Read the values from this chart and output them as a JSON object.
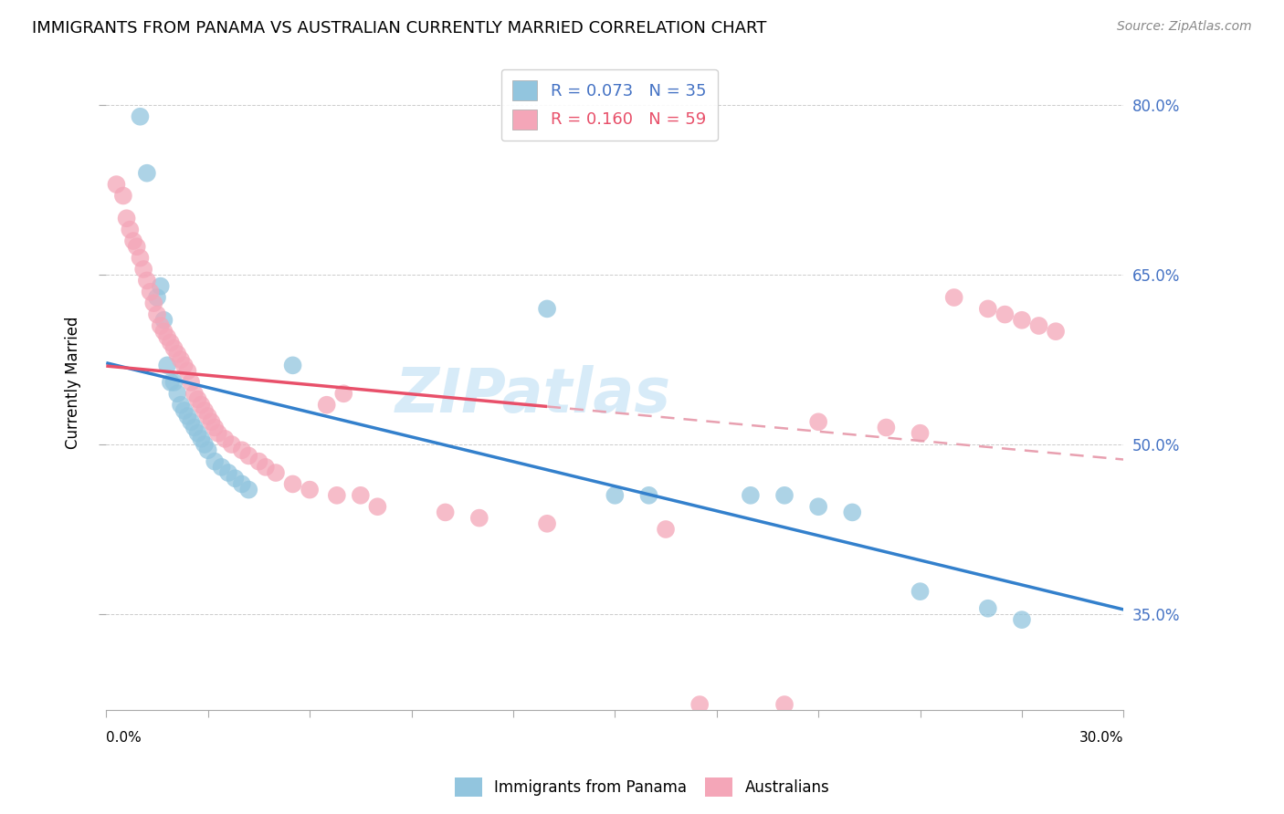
{
  "title": "IMMIGRANTS FROM PANAMA VS AUSTRALIAN CURRENTLY MARRIED CORRELATION CHART",
  "source": "Source: ZipAtlas.com",
  "ylabel": "Currently Married",
  "y_ticks": [
    0.35,
    0.5,
    0.65,
    0.8
  ],
  "y_tick_labels": [
    "35.0%",
    "50.0%",
    "65.0%",
    "80.0%"
  ],
  "x_range": [
    0.0,
    0.3
  ],
  "y_range": [
    0.265,
    0.845
  ],
  "blue_color": "#92c5de",
  "pink_color": "#f4a6b8",
  "blue_line_color": "#3380cc",
  "pink_line_color": "#e8506a",
  "pink_dashed_color": "#e8a0b0",
  "watermark": "ZIPatlas",
  "blue_x": [
    0.01,
    0.012,
    0.015,
    0.016,
    0.017,
    0.018,
    0.019,
    0.02,
    0.021,
    0.022,
    0.023,
    0.024,
    0.025,
    0.026,
    0.027,
    0.028,
    0.029,
    0.03,
    0.032,
    0.034,
    0.036,
    0.038,
    0.04,
    0.042,
    0.055,
    0.13,
    0.15,
    0.16,
    0.19,
    0.2,
    0.21,
    0.22,
    0.24,
    0.26,
    0.27
  ],
  "blue_y": [
    0.79,
    0.74,
    0.63,
    0.64,
    0.61,
    0.57,
    0.555,
    0.555,
    0.545,
    0.535,
    0.53,
    0.525,
    0.52,
    0.515,
    0.51,
    0.505,
    0.5,
    0.495,
    0.485,
    0.48,
    0.475,
    0.47,
    0.465,
    0.46,
    0.57,
    0.62,
    0.455,
    0.455,
    0.455,
    0.455,
    0.445,
    0.44,
    0.37,
    0.355,
    0.345
  ],
  "pink_x": [
    0.003,
    0.005,
    0.006,
    0.007,
    0.008,
    0.009,
    0.01,
    0.011,
    0.012,
    0.013,
    0.014,
    0.015,
    0.016,
    0.017,
    0.018,
    0.019,
    0.02,
    0.021,
    0.022,
    0.023,
    0.024,
    0.025,
    0.026,
    0.027,
    0.028,
    0.029,
    0.03,
    0.031,
    0.032,
    0.033,
    0.035,
    0.037,
    0.04,
    0.042,
    0.045,
    0.047,
    0.05,
    0.055,
    0.06,
    0.065,
    0.068,
    0.07,
    0.075,
    0.08,
    0.1,
    0.11,
    0.13,
    0.165,
    0.175,
    0.2,
    0.21,
    0.23,
    0.24,
    0.25,
    0.26,
    0.265,
    0.27,
    0.275,
    0.28
  ],
  "pink_y": [
    0.73,
    0.72,
    0.7,
    0.69,
    0.68,
    0.675,
    0.665,
    0.655,
    0.645,
    0.635,
    0.625,
    0.615,
    0.605,
    0.6,
    0.595,
    0.59,
    0.585,
    0.58,
    0.575,
    0.57,
    0.565,
    0.555,
    0.545,
    0.54,
    0.535,
    0.53,
    0.525,
    0.52,
    0.515,
    0.51,
    0.505,
    0.5,
    0.495,
    0.49,
    0.485,
    0.48,
    0.475,
    0.465,
    0.46,
    0.535,
    0.455,
    0.545,
    0.455,
    0.445,
    0.44,
    0.435,
    0.43,
    0.425,
    0.27,
    0.27,
    0.52,
    0.515,
    0.51,
    0.63,
    0.62,
    0.615,
    0.61,
    0.605,
    0.6
  ]
}
